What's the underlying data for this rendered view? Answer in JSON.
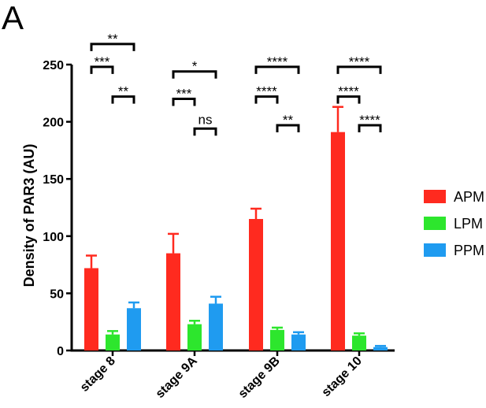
{
  "panel_label": "A",
  "chart_data": {
    "type": "bar",
    "ylabel": "Density of PAR3 (AU)",
    "xlabel": "",
    "ylim": [
      0,
      250
    ],
    "yticks": [
      0,
      50,
      100,
      150,
      200,
      250
    ],
    "categories": [
      "stage 8",
      "stage 9A",
      "stage 9B",
      "stage 10"
    ],
    "series": [
      {
        "name": "APM",
        "color": "#ff2a1f",
        "values": [
          72,
          85,
          115,
          191
        ],
        "errors": [
          11,
          17,
          9,
          22
        ]
      },
      {
        "name": "LPM",
        "color": "#2de62d",
        "values": [
          14,
          23,
          18,
          13
        ],
        "errors": [
          3,
          3,
          2,
          2
        ]
      },
      {
        "name": "PPM",
        "color": "#1f9bf0",
        "values": [
          37,
          41,
          14,
          3
        ],
        "errors": [
          5,
          6,
          2,
          1
        ]
      }
    ],
    "legend_position": "right",
    "significance": [
      {
        "category": 0,
        "from": 0,
        "to": 2,
        "y": 268,
        "label": "**"
      },
      {
        "category": 0,
        "from": 0,
        "to": 1,
        "y": 248,
        "label": "***"
      },
      {
        "category": 0,
        "from": 1,
        "to": 2,
        "y": 222,
        "label": "**"
      },
      {
        "category": 1,
        "from": 0,
        "to": 2,
        "y": 244,
        "label": "*"
      },
      {
        "category": 1,
        "from": 0,
        "to": 1,
        "y": 220,
        "label": "***"
      },
      {
        "category": 1,
        "from": 1,
        "to": 2,
        "y": 194,
        "label": "ns"
      },
      {
        "category": 2,
        "from": 0,
        "to": 2,
        "y": 248,
        "label": "****"
      },
      {
        "category": 2,
        "from": 0,
        "to": 1,
        "y": 222,
        "label": "****"
      },
      {
        "category": 2,
        "from": 1,
        "to": 2,
        "y": 197,
        "label": "**"
      },
      {
        "category": 3,
        "from": 0,
        "to": 2,
        "y": 248,
        "label": "****"
      },
      {
        "category": 3,
        "from": 0,
        "to": 1,
        "y": 222,
        "label": "****"
      },
      {
        "category": 3,
        "from": 1,
        "to": 2,
        "y": 197,
        "label": "****"
      }
    ]
  }
}
